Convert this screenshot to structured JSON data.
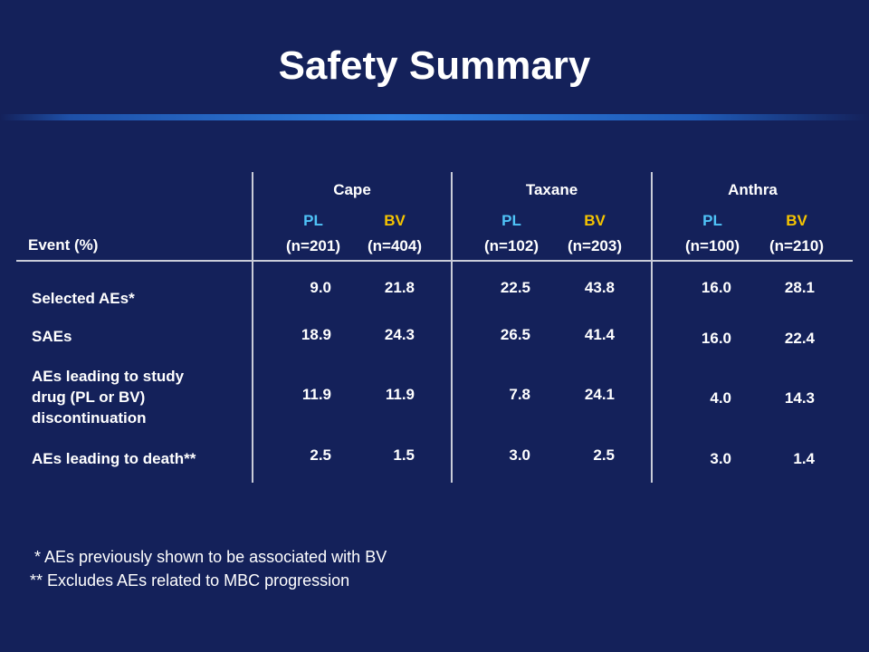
{
  "title": "Safety Summary",
  "table": {
    "event_header": "Event (%)",
    "groups": [
      {
        "name": "Cape",
        "pl_label": "PL",
        "bv_label": "BV",
        "pl_n": "(n=201)",
        "bv_n": "(n=404)"
      },
      {
        "name": "Taxane",
        "pl_label": "PL",
        "bv_label": "BV",
        "pl_n": "(n=102)",
        "bv_n": "(n=203)"
      },
      {
        "name": "Anthra",
        "pl_label": "PL",
        "bv_label": "BV",
        "pl_n": "(n=100)",
        "bv_n": "(n=210)"
      }
    ],
    "rows": [
      {
        "label_lines": [
          "Selected AEs*"
        ],
        "values": [
          "9.0",
          "21.8",
          "22.5",
          "43.8",
          "16.0",
          "28.1"
        ]
      },
      {
        "label_lines": [
          "SAEs"
        ],
        "values": [
          "18.9",
          "24.3",
          "26.5",
          "41.4",
          "16.0",
          "22.4"
        ]
      },
      {
        "label_lines": [
          "AEs leading to study",
          "drug (PL or BV)",
          "discontinuation"
        ],
        "values": [
          "11.9",
          "11.9",
          "7.8",
          "24.1",
          "4.0",
          "14.3"
        ]
      },
      {
        "label_lines": [
          "AEs leading to death**"
        ],
        "values": [
          "2.5",
          "1.5",
          "3.0",
          "2.5",
          "3.0",
          "1.4"
        ]
      }
    ]
  },
  "footnotes": [
    " * AEs previously shown to be associated with BV",
    "** Excludes AEs related to MBC progression"
  ],
  "colors": {
    "background": "#14215a",
    "pl": "#4fc3f7",
    "bv": "#f5c400"
  }
}
